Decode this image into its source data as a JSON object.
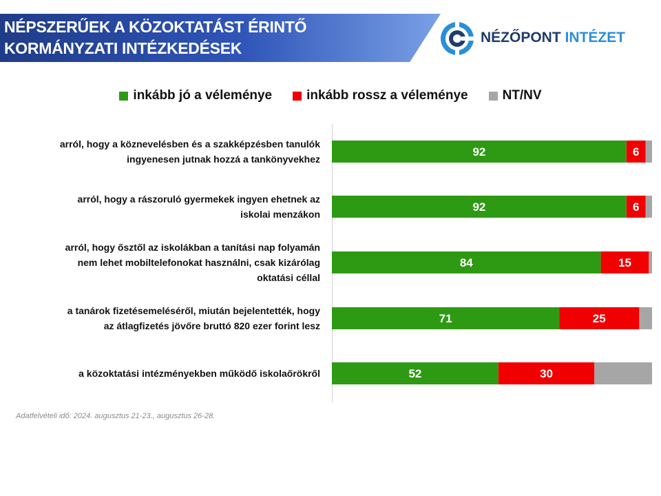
{
  "title": {
    "line1": "NÉPSZERŰEK A KÖZOKTATÁST ÉRINTŐ",
    "line2": "KORMÁNYZATI INTÉZKEDÉSEK"
  },
  "logo": {
    "name": "NÉZŐPONT",
    "accent": "INTÉZET",
    "icon": "nezopont-logo-icon"
  },
  "colors": {
    "green": "#2e9a13",
    "red": "#f00000",
    "gray": "#a6a6a6",
    "banner": "#2f55b8"
  },
  "source_note": "Adatfelvételi idő: 2024.  augusztus 21-23.,  augusztus 26-28.",
  "chart_data": {
    "type": "bar",
    "orientation": "horizontal",
    "stacked": true,
    "xlim": [
      0,
      100
    ],
    "legend_position": "top",
    "grid": false,
    "categories": [
      [
        "arról, hogy a köznevelésben és a szakképzésben tanulók",
        "ingyenesen jutnak hozzá a tankönyvekhez"
      ],
      [
        "arról, hogy a rászoruló gyermekek ingyen ehetnek az",
        "iskolai menzákon"
      ],
      [
        "arról, hogy ősztől az iskolákban a tanítási nap folyamán",
        "nem lehet mobiltelefonokat használni, csak kizárólag",
        "oktatási céllal"
      ],
      [
        "a tanárok fizetésemeléséről, miután bejelentették, hogy",
        "az átlagfizetés jövőre bruttó 820 ezer forint lesz"
      ],
      [
        "a közoktatási intézményekben működő iskolaőrökről"
      ]
    ],
    "series": [
      {
        "name": "inkább jó a véleménye",
        "color": "#2e9a13",
        "values": [
          92,
          92,
          84,
          71,
          52
        ],
        "labels": [
          "92",
          "92",
          "84",
          "71",
          "52"
        ]
      },
      {
        "name": "inkább rossz a véleménye",
        "color": "#f00000",
        "values": [
          6,
          6,
          15,
          25,
          30
        ],
        "labels": [
          "6",
          "6",
          "15",
          "25",
          "30"
        ]
      },
      {
        "name": "NT/NV",
        "color": "#a6a6a6",
        "values": [
          2,
          2,
          1,
          4,
          18
        ],
        "labels": [
          "",
          "",
          "",
          "",
          ""
        ]
      }
    ]
  }
}
